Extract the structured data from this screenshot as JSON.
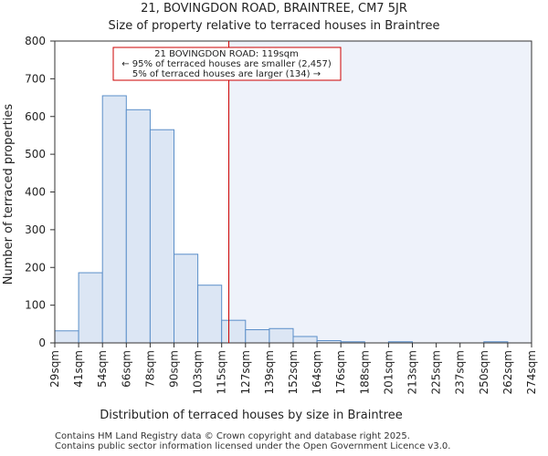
{
  "chart_data": {
    "type": "bar",
    "title_line1": "21, BOVINGDON ROAD, BRAINTREE, CM7 5JR",
    "title_line2": "Size of property relative to terraced houses in Braintree",
    "xlabel": "Distribution of terraced houses by size in Braintree",
    "ylabel": "Number of terraced properties",
    "ylim": [
      0,
      800
    ],
    "yticks": [
      0,
      100,
      200,
      300,
      400,
      500,
      600,
      700,
      800
    ],
    "x_tick_labels": [
      "29sqm",
      "41sqm",
      "54sqm",
      "66sqm",
      "78sqm",
      "90sqm",
      "103sqm",
      "115sqm",
      "127sqm",
      "139sqm",
      "152sqm",
      "164sqm",
      "176sqm",
      "188sqm",
      "201sqm",
      "213sqm",
      "225sqm",
      "237sqm",
      "250sqm",
      "262sqm",
      "274sqm"
    ],
    "values": [
      32,
      186,
      655,
      618,
      565,
      235,
      153,
      60,
      35,
      38,
      17,
      6,
      3,
      0,
      3,
      0,
      0,
      0,
      3,
      0
    ],
    "subject_bin_position": 7.3,
    "grid": false,
    "colors": {
      "bar_fill": "#dce6f4",
      "bar_stroke": "#5b8fc9",
      "highlight_bg": "#eef2fa",
      "marker_line": "#cc0000",
      "annotation_border": "#cc0000"
    },
    "annotation": {
      "line1": "21 BOVINGDON ROAD: 119sqm",
      "line2": "← 95% of terraced houses are smaller (2,457)",
      "line3": "5% of terraced houses are larger (134) →"
    }
  },
  "footer": {
    "line1": "Contains HM Land Registry data © Crown copyright and database right 2025.",
    "line2": "Contains public sector information licensed under the Open Government Licence v3.0."
  }
}
